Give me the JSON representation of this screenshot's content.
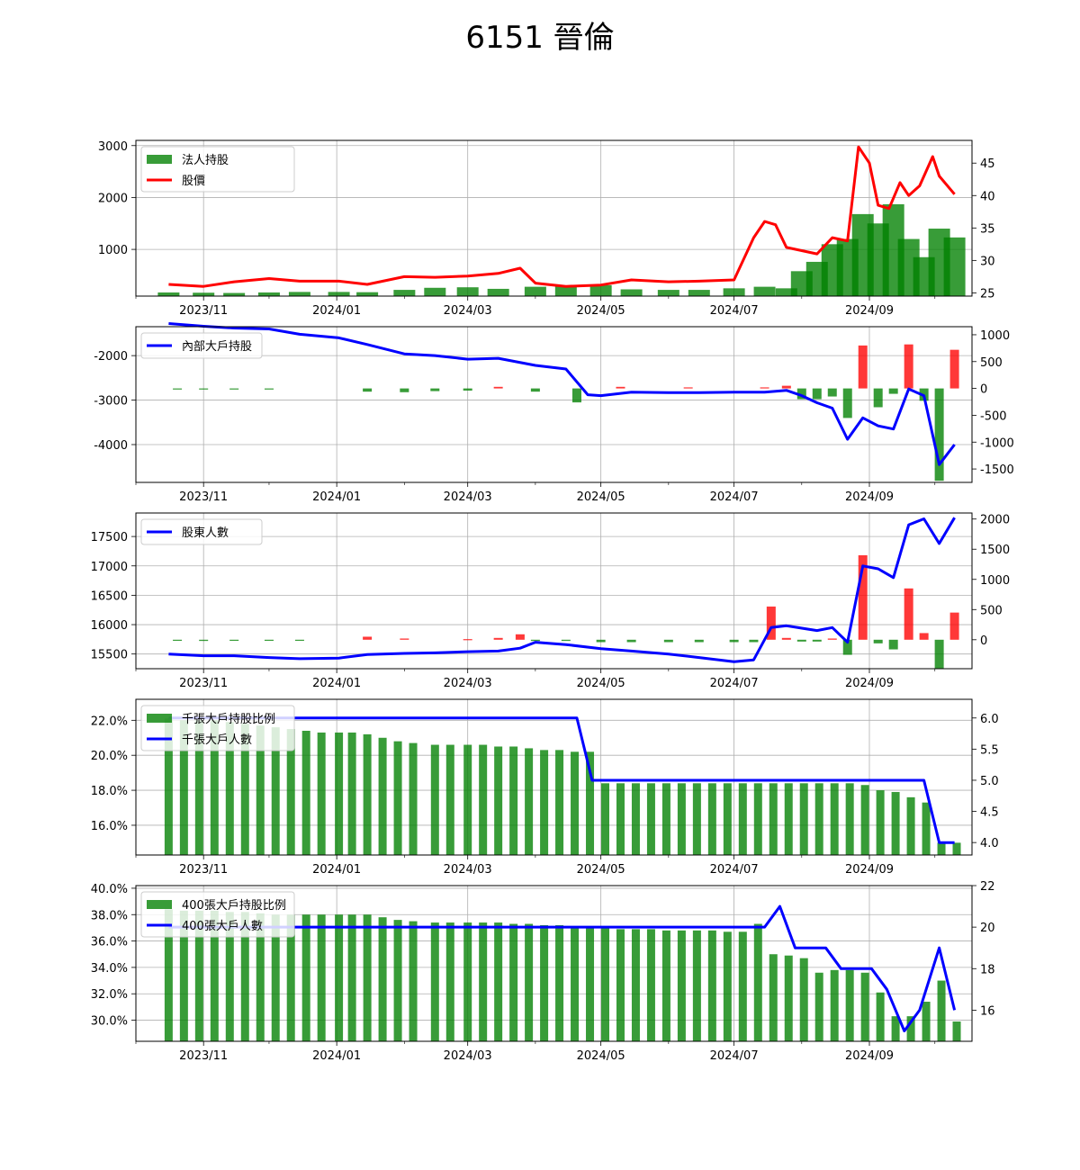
{
  "title": "6151 晉倫",
  "colors": {
    "green": "#008000",
    "red": "#ff0000",
    "blue": "#0000ff",
    "grid": "#b0b0b0"
  },
  "x_ticks": [
    "2023/11",
    "2024/01",
    "2024/03",
    "2024/05",
    "2024/07",
    "2024/09"
  ],
  "chart_data": [
    {
      "type": "bar+line",
      "title": "",
      "legend": [
        "法人持股",
        "股價"
      ],
      "legend_position": "upper-left",
      "grid": true,
      "y_left_ticks": [
        "1000",
        "2000",
        "3000"
      ],
      "y_right_ticks": [
        "25",
        "30",
        "35",
        "40",
        "45"
      ],
      "ylim_left": [
        100,
        3100
      ],
      "ylim_right": [
        24.5,
        48.5
      ],
      "series": [
        {
          "name": "法人持股",
          "kind": "bar",
          "axis": "left",
          "color": "#008000",
          "x": [
            "2023-10-16",
            "2023-11-01",
            "2023-11-15",
            "2023-12-01",
            "2023-12-15",
            "2024-01-02",
            "2024-01-15",
            "2024-02-01",
            "2024-02-15",
            "2024-03-01",
            "2024-03-15",
            "2024-04-01",
            "2024-04-15",
            "2024-05-01",
            "2024-05-15",
            "2024-06-01",
            "2024-06-15",
            "2024-07-01",
            "2024-07-15",
            "2024-07-25",
            "2024-08-01",
            "2024-08-08",
            "2024-08-15",
            "2024-08-22",
            "2024-08-29",
            "2024-09-05",
            "2024-09-12",
            "2024-09-19",
            "2024-09-26",
            "2024-10-03",
            "2024-10-10"
          ],
          "y": [
            170,
            165,
            160,
            170,
            180,
            180,
            175,
            220,
            260,
            270,
            240,
            280,
            300,
            310,
            230,
            220,
            220,
            250,
            280,
            250,
            580,
            760,
            1100,
            1200,
            1680,
            1500,
            1870,
            1200,
            850,
            1400,
            1230
          ]
        },
        {
          "name": "股價",
          "kind": "line",
          "axis": "right",
          "color": "#ff0000",
          "x": [
            "2023-10-16",
            "2023-11-01",
            "2023-11-15",
            "2023-12-01",
            "2023-12-15",
            "2024-01-02",
            "2024-01-15",
            "2024-02-01",
            "2024-02-15",
            "2024-03-01",
            "2024-03-15",
            "2024-03-25",
            "2024-04-01",
            "2024-04-15",
            "2024-05-01",
            "2024-05-15",
            "2024-06-01",
            "2024-06-15",
            "2024-07-01",
            "2024-07-10",
            "2024-07-15",
            "2024-07-20",
            "2024-07-25",
            "2024-08-01",
            "2024-08-08",
            "2024-08-15",
            "2024-08-22",
            "2024-08-27",
            "2024-09-01",
            "2024-09-05",
            "2024-09-10",
            "2024-09-15",
            "2024-09-19",
            "2024-09-24",
            "2024-09-30",
            "2024-10-03",
            "2024-10-10"
          ],
          "y": [
            26.3,
            26.0,
            26.7,
            27.2,
            26.8,
            26.8,
            26.3,
            27.5,
            27.4,
            27.6,
            28.0,
            28.8,
            26.5,
            26.0,
            26.2,
            27.0,
            26.7,
            26.8,
            27.0,
            33.5,
            36.0,
            35.5,
            32.0,
            31.5,
            31.0,
            33.5,
            33.0,
            47.5,
            45.0,
            38.5,
            38.0,
            42.0,
            40.0,
            41.5,
            46.0,
            43.0,
            40.2
          ]
        }
      ]
    },
    {
      "type": "bar+line",
      "title": "",
      "legend": [
        "內部大戶持股"
      ],
      "legend_position": "upper-left",
      "grid": true,
      "y_left_ticks": [
        "-4000",
        "-3000",
        "-2000"
      ],
      "y_right_ticks": [
        "-1500",
        "-1000",
        "-500",
        "0",
        "500",
        "1000"
      ],
      "ylim_left": [
        -4850,
        -1350
      ],
      "ylim_right": [
        -1750,
        1150
      ],
      "series": [
        {
          "name": "內部大戶持股",
          "kind": "line",
          "axis": "left",
          "color": "#0000ff",
          "x": [
            "2023-10-16",
            "2023-11-01",
            "2023-11-15",
            "2023-12-01",
            "2023-12-15",
            "2024-01-02",
            "2024-01-15",
            "2024-02-01",
            "2024-02-15",
            "2024-03-01",
            "2024-03-15",
            "2024-04-01",
            "2024-04-15",
            "2024-04-25",
            "2024-05-01",
            "2024-05-15",
            "2024-06-01",
            "2024-06-15",
            "2024-07-01",
            "2024-07-15",
            "2024-07-25",
            "2024-08-01",
            "2024-08-08",
            "2024-08-15",
            "2024-08-22",
            "2024-08-29",
            "2024-09-05",
            "2024-09-12",
            "2024-09-19",
            "2024-09-26",
            "2024-10-03",
            "2024-10-10"
          ],
          "y": [
            -1280,
            -1340,
            -1380,
            -1400,
            -1520,
            -1600,
            -1750,
            -1960,
            -2000,
            -2080,
            -2060,
            -2220,
            -2300,
            -2880,
            -2900,
            -2820,
            -2830,
            -2830,
            -2820,
            -2820,
            -2780,
            -2900,
            -3060,
            -3180,
            -3880,
            -3400,
            -3580,
            -3650,
            -2750,
            -2900,
            -4450,
            -4000
          ]
        },
        {
          "name": "增減",
          "kind": "bar",
          "axis": "right",
          "color_pos": "#ff0000",
          "color_neg": "#008000",
          "x": [
            "2023-10-20",
            "2023-11-01",
            "2023-11-15",
            "2023-12-01",
            "2024-01-15",
            "2024-02-01",
            "2024-02-15",
            "2024-03-01",
            "2024-03-15",
            "2024-04-01",
            "2024-04-20",
            "2024-05-10",
            "2024-06-10",
            "2024-07-15",
            "2024-07-25",
            "2024-08-01",
            "2024-08-08",
            "2024-08-15",
            "2024-08-22",
            "2024-08-29",
            "2024-09-05",
            "2024-09-12",
            "2024-09-19",
            "2024-09-26",
            "2024-10-03",
            "2024-10-10"
          ],
          "y": [
            -10,
            -20,
            -20,
            -20,
            -60,
            -70,
            -50,
            -40,
            30,
            -60,
            -260,
            30,
            20,
            20,
            50,
            -200,
            -200,
            -150,
            -550,
            800,
            -350,
            -100,
            820,
            -230,
            -1720,
            720
          ]
        }
      ]
    },
    {
      "type": "bar+line",
      "title": "",
      "legend": [
        "股東人數"
      ],
      "legend_position": "upper-left",
      "grid": true,
      "y_left_ticks": [
        "15500",
        "16000",
        "16500",
        "17000",
        "17500"
      ],
      "y_right_ticks": [
        "0",
        "500",
        "1000",
        "1500",
        "2000"
      ],
      "ylim_left": [
        15250,
        17900
      ],
      "ylim_right": [
        -480,
        2100
      ],
      "series": [
        {
          "name": "股東人數",
          "kind": "line",
          "axis": "left",
          "color": "#0000ff",
          "x": [
            "2023-10-16",
            "2023-11-01",
            "2023-11-15",
            "2023-12-01",
            "2023-12-15",
            "2024-01-02",
            "2024-01-15",
            "2024-02-01",
            "2024-02-15",
            "2024-03-01",
            "2024-03-15",
            "2024-03-25",
            "2024-04-01",
            "2024-04-15",
            "2024-05-01",
            "2024-05-15",
            "2024-06-01",
            "2024-06-15",
            "2024-07-01",
            "2024-07-10",
            "2024-07-18",
            "2024-07-25",
            "2024-08-08",
            "2024-08-15",
            "2024-08-22",
            "2024-08-29",
            "2024-09-05",
            "2024-09-12",
            "2024-09-19",
            "2024-09-26",
            "2024-10-03",
            "2024-10-10"
          ],
          "y": [
            15500,
            15470,
            15470,
            15440,
            15420,
            15430,
            15490,
            15510,
            15520,
            15540,
            15550,
            15600,
            15700,
            15660,
            15590,
            15550,
            15500,
            15440,
            15370,
            15400,
            15950,
            15980,
            15900,
            15950,
            15700,
            17000,
            16950,
            16800,
            17700,
            17800,
            17380,
            17820
          ]
        },
        {
          "name": "增減",
          "kind": "bar",
          "axis": "right",
          "color_pos": "#ff0000",
          "color_neg": "#008000",
          "x": [
            "2023-10-20",
            "2023-11-01",
            "2023-11-15",
            "2023-12-01",
            "2023-12-15",
            "2024-01-15",
            "2024-02-01",
            "2024-03-01",
            "2024-03-15",
            "2024-03-25",
            "2024-04-01",
            "2024-04-15",
            "2024-05-01",
            "2024-05-15",
            "2024-06-01",
            "2024-06-15",
            "2024-07-01",
            "2024-07-10",
            "2024-07-18",
            "2024-07-25",
            "2024-08-01",
            "2024-08-08",
            "2024-08-15",
            "2024-08-22",
            "2024-08-29",
            "2024-09-05",
            "2024-09-12",
            "2024-09-19",
            "2024-09-26",
            "2024-10-03",
            "2024-10-10"
          ],
          "y": [
            -15,
            -20,
            -10,
            -10,
            -10,
            50,
            20,
            10,
            30,
            90,
            -20,
            -20,
            -40,
            -40,
            -40,
            -40,
            -40,
            -40,
            550,
            30,
            -30,
            -30,
            20,
            -250,
            1400,
            -60,
            -160,
            850,
            110,
            -480,
            450
          ]
        }
      ]
    },
    {
      "type": "bar+line",
      "title": "",
      "legend": [
        "千張大戶持股比例",
        "千張大戶人數"
      ],
      "legend_position": "upper-left",
      "grid": true,
      "y_left_ticks": [
        "16.0%",
        "18.0%",
        "20.0%",
        "22.0%"
      ],
      "y_right_ticks": [
        "4.0",
        "4.5",
        "5.0",
        "5.5",
        "6.0"
      ],
      "ylim_left": [
        14.3,
        23.2
      ],
      "ylim_right": [
        3.8,
        6.3
      ],
      "series": [
        {
          "name": "千張大戶持股比例",
          "kind": "bar",
          "axis": "left",
          "color": "#008000",
          "x": [
            "2023-10-16",
            "2023-10-23",
            "2023-10-30",
            "2023-11-06",
            "2023-11-13",
            "2023-11-20",
            "2023-11-27",
            "2023-12-04",
            "2023-12-11",
            "2023-12-18",
            "2023-12-25",
            "2024-01-02",
            "2024-01-08",
            "2024-01-15",
            "2024-01-22",
            "2024-01-29",
            "2024-02-05",
            "2024-02-15",
            "2024-02-22",
            "2024-03-01",
            "2024-03-08",
            "2024-03-15",
            "2024-03-22",
            "2024-03-29",
            "2024-04-05",
            "2024-04-12",
            "2024-04-19",
            "2024-04-26",
            "2024-05-03",
            "2024-05-10",
            "2024-05-17",
            "2024-05-24",
            "2024-05-31",
            "2024-06-07",
            "2024-06-14",
            "2024-06-21",
            "2024-06-28",
            "2024-07-05",
            "2024-07-12",
            "2024-07-19",
            "2024-07-26",
            "2024-08-02",
            "2024-08-09",
            "2024-08-16",
            "2024-08-23",
            "2024-08-30",
            "2024-09-06",
            "2024-09-13",
            "2024-09-20",
            "2024-09-27",
            "2024-10-04",
            "2024-10-11"
          ],
          "y": [
            22.1,
            22.0,
            22.0,
            22.0,
            21.9,
            21.8,
            21.7,
            21.6,
            21.5,
            21.4,
            21.3,
            21.3,
            21.3,
            21.2,
            21.0,
            20.8,
            20.7,
            20.6,
            20.6,
            20.6,
            20.6,
            20.5,
            20.5,
            20.4,
            20.3,
            20.3,
            20.2,
            20.2,
            18.4,
            18.4,
            18.4,
            18.4,
            18.4,
            18.4,
            18.4,
            18.4,
            18.4,
            18.4,
            18.4,
            18.4,
            18.4,
            18.4,
            18.4,
            18.4,
            18.4,
            18.3,
            18.0,
            17.9,
            17.6,
            17.3,
            15.0,
            15.0
          ]
        },
        {
          "name": "千張大戶人數",
          "kind": "line",
          "axis": "right",
          "color": "#0000ff",
          "x": [
            "2023-10-16",
            "2024-04-20",
            "2024-04-27",
            "2024-09-26",
            "2024-10-03",
            "2024-10-10"
          ],
          "y": [
            6,
            6,
            5,
            5,
            4,
            4
          ]
        }
      ]
    },
    {
      "type": "bar+line",
      "title": "",
      "legend": [
        "400張大戶持股比例",
        "400張大戶人數"
      ],
      "legend_position": "upper-left",
      "grid": true,
      "y_left_ticks": [
        "30.0%",
        "32.0%",
        "34.0%",
        "36.0%",
        "38.0%",
        "40.0%"
      ],
      "y_right_ticks": [
        "16",
        "18",
        "20",
        "22"
      ],
      "ylim_left": [
        28.4,
        40.2
      ],
      "ylim_right": [
        14.5,
        22.0
      ],
      "series": [
        {
          "name": "400張大戶持股比例",
          "kind": "bar",
          "axis": "left",
          "color": "#008000",
          "x": [
            "2023-10-16",
            "2023-10-23",
            "2023-10-30",
            "2023-11-06",
            "2023-11-13",
            "2023-11-20",
            "2023-11-27",
            "2023-12-04",
            "2023-12-11",
            "2023-12-18",
            "2023-12-25",
            "2024-01-02",
            "2024-01-08",
            "2024-01-15",
            "2024-01-22",
            "2024-01-29",
            "2024-02-05",
            "2024-02-15",
            "2024-02-22",
            "2024-03-01",
            "2024-03-08",
            "2024-03-15",
            "2024-03-22",
            "2024-03-29",
            "2024-04-05",
            "2024-04-12",
            "2024-04-19",
            "2024-04-26",
            "2024-05-03",
            "2024-05-10",
            "2024-05-17",
            "2024-05-24",
            "2024-05-31",
            "2024-06-07",
            "2024-06-14",
            "2024-06-21",
            "2024-06-28",
            "2024-07-05",
            "2024-07-12",
            "2024-07-19",
            "2024-07-26",
            "2024-08-02",
            "2024-08-09",
            "2024-08-16",
            "2024-08-23",
            "2024-08-30",
            "2024-09-06",
            "2024-09-13",
            "2024-09-20",
            "2024-09-27",
            "2024-10-04",
            "2024-10-11"
          ],
          "y": [
            38.4,
            38.3,
            38.3,
            38.3,
            38.2,
            38.2,
            38.1,
            38.0,
            38.0,
            38.0,
            38.0,
            38.0,
            38.0,
            38.0,
            37.8,
            37.6,
            37.5,
            37.4,
            37.4,
            37.4,
            37.4,
            37.4,
            37.3,
            37.3,
            37.2,
            37.2,
            37.1,
            37.1,
            37.0,
            36.9,
            36.9,
            36.9,
            36.8,
            36.8,
            36.8,
            36.8,
            36.7,
            36.7,
            37.3,
            35.0,
            34.9,
            34.7,
            33.6,
            33.8,
            33.8,
            33.6,
            32.1,
            30.3,
            30.3,
            31.4,
            33.0,
            29.9
          ]
        },
        {
          "name": "400張大戶人數",
          "kind": "line",
          "axis": "right",
          "color": "#0000ff",
          "x": [
            "2023-10-16",
            "2024-07-15",
            "2024-07-22",
            "2024-07-29",
            "2024-08-12",
            "2024-08-19",
            "2024-08-26",
            "2024-09-02",
            "2024-09-09",
            "2024-09-17",
            "2024-09-24",
            "2024-10-03",
            "2024-10-10"
          ],
          "y": [
            20,
            20,
            21,
            19,
            19,
            18,
            18,
            18,
            17,
            15,
            16,
            19,
            16
          ]
        }
      ]
    }
  ]
}
